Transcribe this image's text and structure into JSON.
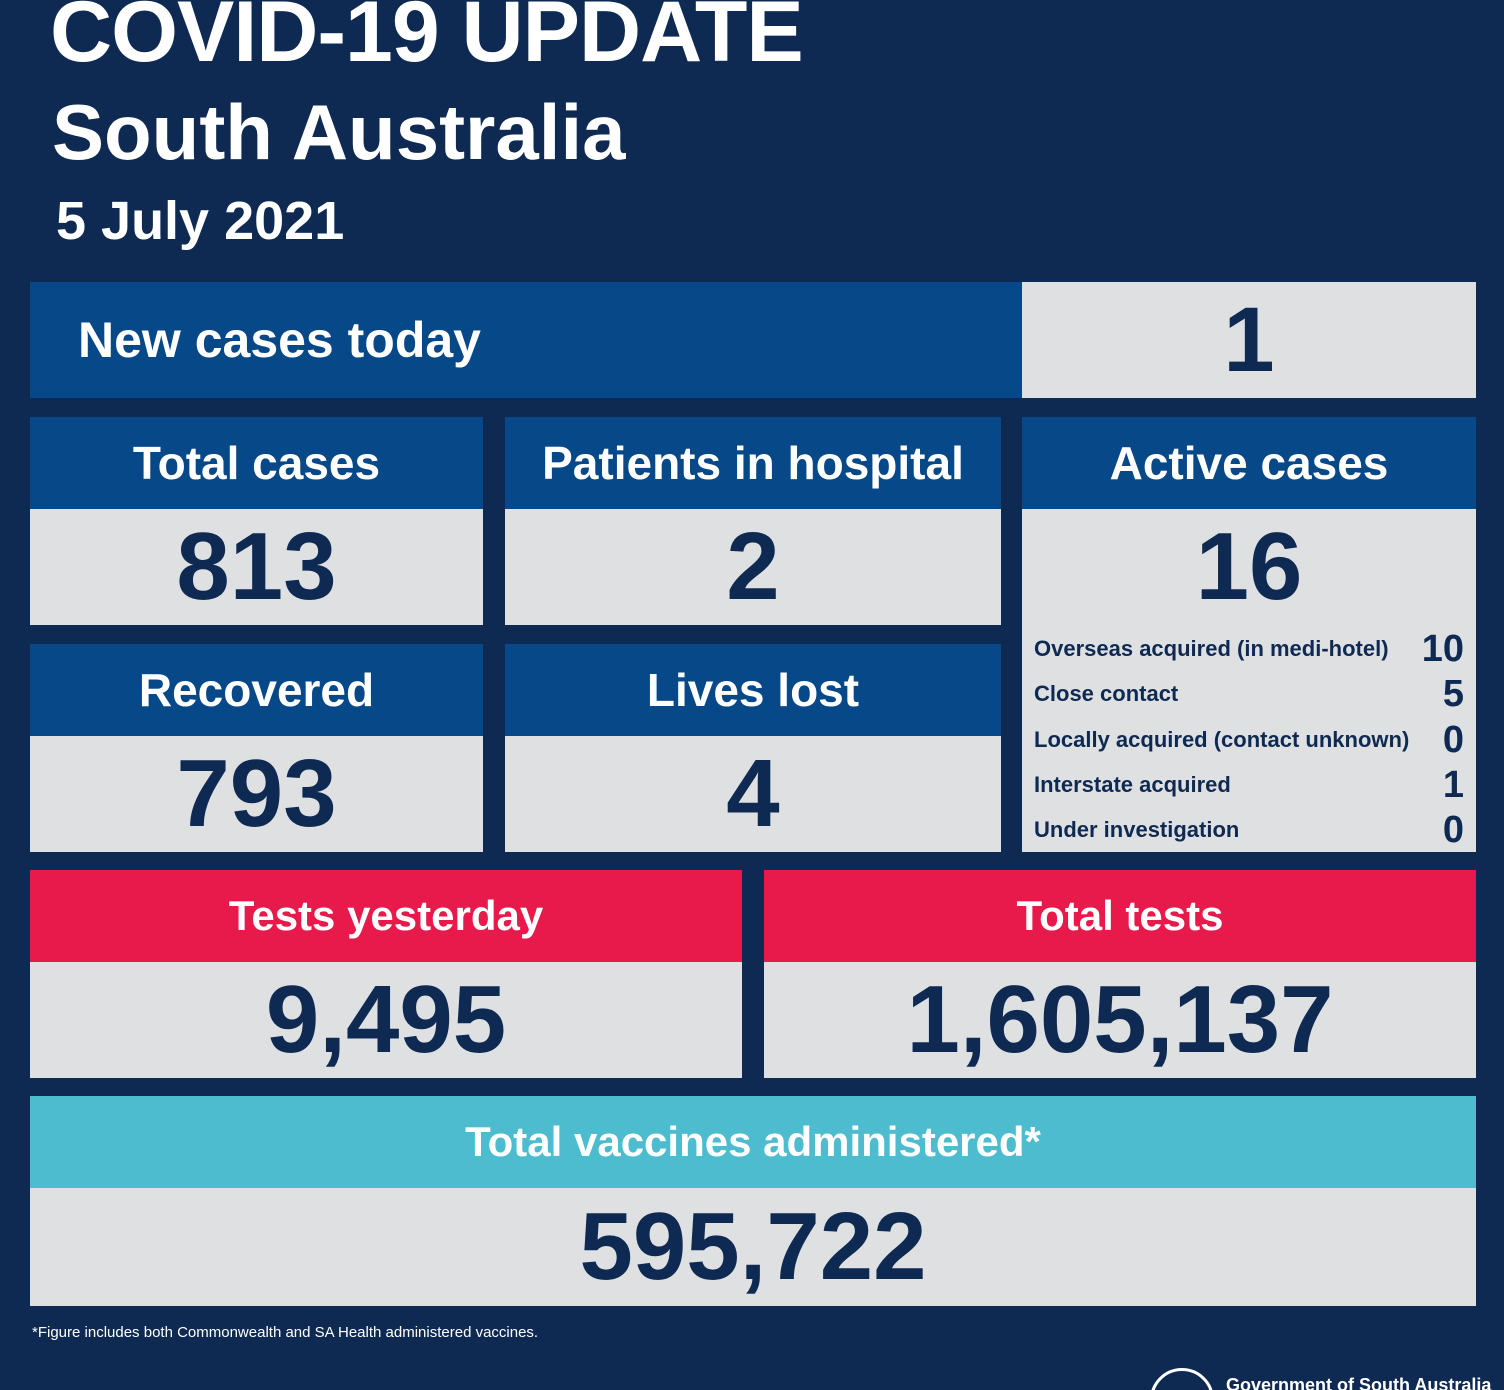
{
  "header": {
    "title": "COVID-19 UPDATE",
    "region": "South Australia",
    "date": "5 July 2021"
  },
  "new_cases": {
    "label": "New cases today",
    "value": "1"
  },
  "total_cases": {
    "label": "Total cases",
    "value": "813"
  },
  "hospital": {
    "label": "Patients in hospital",
    "value": "2"
  },
  "active": {
    "label": "Active cases",
    "value": "16",
    "breakdown": [
      {
        "label": "Overseas acquired (in medi-hotel)",
        "value": "10"
      },
      {
        "label": "Close contact",
        "value": "5"
      },
      {
        "label": "Locally acquired (contact unknown)",
        "value": "0"
      },
      {
        "label": "Interstate acquired",
        "value": "1"
      },
      {
        "label": "Under investigation",
        "value": "0"
      }
    ]
  },
  "recovered": {
    "label": "Recovered",
    "value": "793"
  },
  "lives_lost": {
    "label": "Lives lost",
    "value": "4"
  },
  "tests_yesterday": {
    "label": "Tests yesterday",
    "value": "9,495"
  },
  "total_tests": {
    "label": "Total tests",
    "value": "1,605,137"
  },
  "vaccines": {
    "label": "Total vaccines administered*",
    "value": "595,722"
  },
  "footnote": "*Figure includes both Commonwealth and SA Health administered vaccines.",
  "government": "Government of South Australia",
  "colors": {
    "background": "#0f2a52",
    "header_blue": "#074889",
    "value_grey": "#dfe0e2",
    "tests_red": "#e8194b",
    "vaccine_teal": "#4cbcce"
  }
}
